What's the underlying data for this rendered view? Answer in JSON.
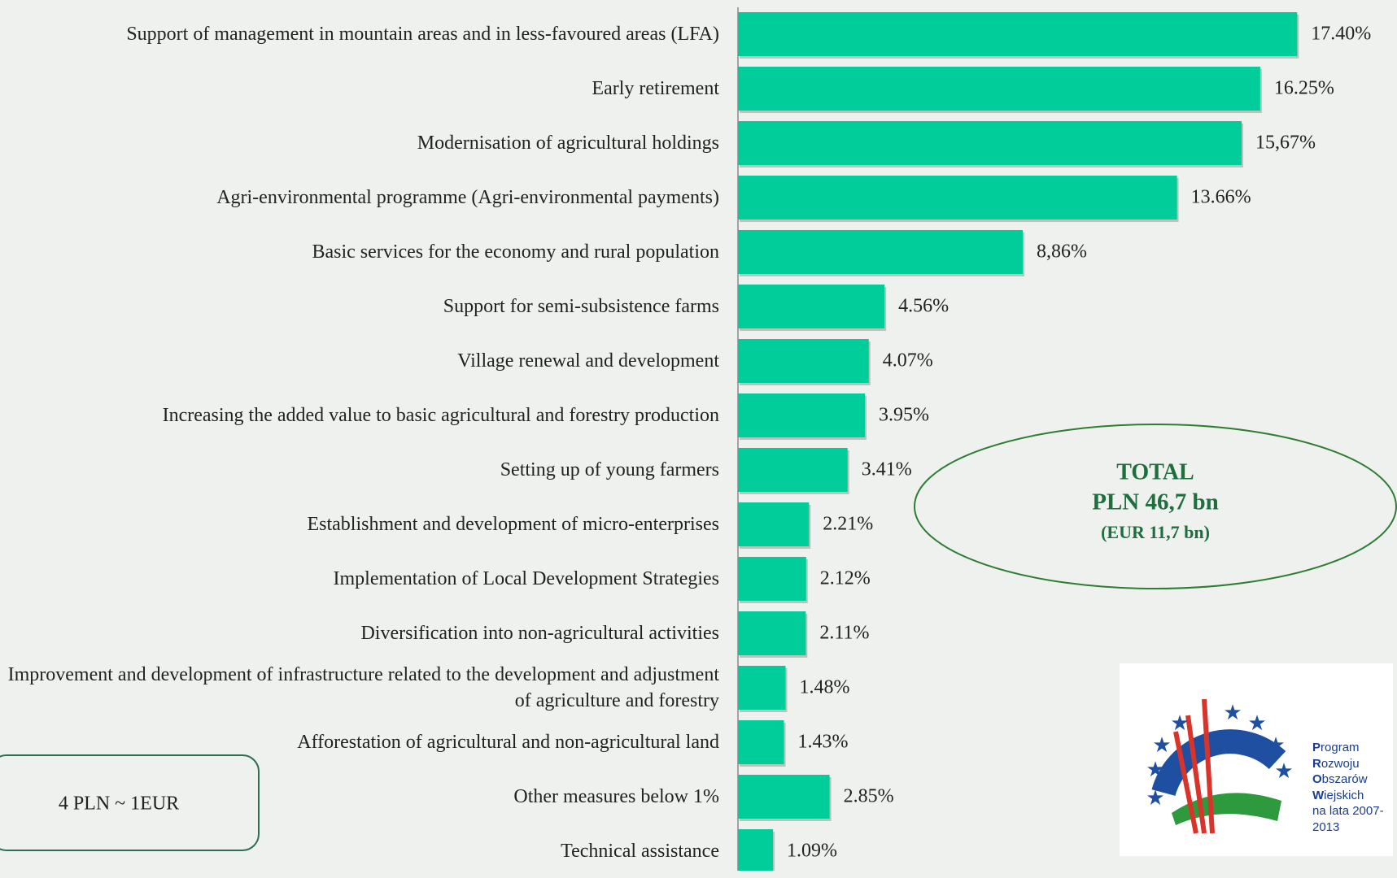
{
  "chart_data": {
    "type": "barh",
    "categories": [
      "Support of management in mountain areas and in less-favoured areas (LFA)",
      "Early retirement",
      "Modernisation of agricultural holdings",
      "Agri-environmental programme (Agri-environmental payments)",
      "Basic services for the economy and rural population",
      "Support for semi-subsistence farms",
      "Village renewal and development",
      "Increasing the added value to basic agricultural and forestry production",
      "Setting up of young farmers",
      "Establishment and development of micro-enterprises",
      "Implementation of Local Development Strategies",
      "Diversification into non-agricultural activities",
      "Improvement and development of infrastructure related to the development and adjustment of agriculture and forestry",
      "Afforestation of agricultural and non-agricultural land",
      "Other measures below 1%",
      "Technical assistance"
    ],
    "values": [
      17.4,
      16.25,
      15.67,
      13.66,
      8.86,
      4.56,
      4.07,
      3.95,
      3.41,
      2.21,
      2.12,
      2.11,
      1.48,
      1.43,
      2.85,
      1.09
    ],
    "value_labels": [
      "17.40%",
      "16.25%",
      "15,67%",
      "13.66%",
      "8,86%",
      "4.56%",
      "4.07%",
      "3.95%",
      "3.41%",
      "2.21%",
      "2.12%",
      "2.11%",
      "1.48%",
      "1.43%",
      "2.85%",
      "1.09%"
    ],
    "color": "#00cd9a",
    "annotations": {
      "total": [
        "TOTAL",
        "PLN 46,7 bn",
        "(EUR 11,7 bn)"
      ],
      "rate": "4 PLN  ~ 1EUR"
    },
    "logo": [
      "Program",
      "Rozwoju",
      "Obszarów",
      "Wiejskich",
      "na lata 2007-2013"
    ]
  }
}
